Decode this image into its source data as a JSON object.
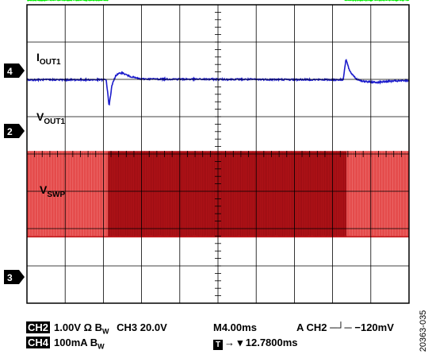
{
  "chart_data": {
    "type": "line",
    "title": "",
    "xlabel": "",
    "ylabel": "",
    "time_per_div": "4.00ms",
    "divisions_x": 10,
    "divisions_y": 8,
    "grid": true,
    "x": [
      0,
      4,
      8,
      12,
      16,
      20,
      24,
      28,
      32,
      36,
      40
    ],
    "series": [
      {
        "name": "I_OUT1",
        "channel": "4",
        "color": "#00ee00",
        "scale": "100mA/div",
        "marker_pos_div": 4.13,
        "x": [
          0,
          8.5,
          8.5,
          33.2,
          33.2,
          40
        ],
        "y_div": [
          0,
          0,
          0.57,
          0.57,
          0,
          0
        ],
        "ripple_div": 0.05
      },
      {
        "name": "V_OUT1",
        "channel": "2",
        "color": "#1c1ccc",
        "scale": "1.00V/div",
        "marker_pos_div": 1.99,
        "x": [
          0,
          8.3,
          8.6,
          8.9,
          9.3,
          9.9,
          10.7,
          11.8,
          40
        ],
        "y_div": [
          0,
          0,
          -0.7,
          -0.15,
          0.12,
          0.19,
          0.1,
          0.02,
          0
        ],
        "x_release": [
          33.1,
          33.4,
          33.8,
          34.5,
          35.3,
          36.5,
          38,
          40
        ],
        "y_release": [
          0,
          0.55,
          0.22,
          0.02,
          -0.05,
          -0.07,
          -0.04,
          -0.02
        ],
        "ripple_div": 0.02
      },
      {
        "name": "V_SWP",
        "channel": "3",
        "color": "#c0161a",
        "scale": "20.0V/div",
        "marker_pos_div": -2.22,
        "low_div": 0,
        "high_div": 2.3,
        "segments": [
          {
            "from": 0,
            "to": 8.5,
            "color": "#e44b4b"
          },
          {
            "from": 8.5,
            "to": 33.5,
            "color": "#b01218"
          },
          {
            "from": 33.5,
            "to": 40,
            "color": "#e44b4b"
          }
        ]
      }
    ],
    "trigger": {
      "source": "CH2",
      "slope": "falling",
      "level": "-120mV",
      "position": "12.7800ms"
    }
  },
  "labels": {
    "iout_main": "I",
    "iout_sub": "OUT1",
    "vout_main": "V",
    "vout_sub": "OUT1",
    "vswp_main": "V",
    "vswp_sub": "SWP",
    "marker4": "4",
    "marker2": "2",
    "marker3": "3"
  },
  "status": {
    "ch2_chip": "CH2",
    "ch2_setting": "1.00V Ω B",
    "ch2_bw": "W",
    "ch3_setting": "CH3 20.0V",
    "ch4_chip": "CH4",
    "ch4_setting": "100mA B",
    "ch4_bw": "W",
    "timebase": "M4.00ms",
    "trigger": "A  CH2 ─┘─  −120mV",
    "tchip": "T",
    "position": "→ ▾ 12.7800ms"
  },
  "figure_id": "20363-035"
}
